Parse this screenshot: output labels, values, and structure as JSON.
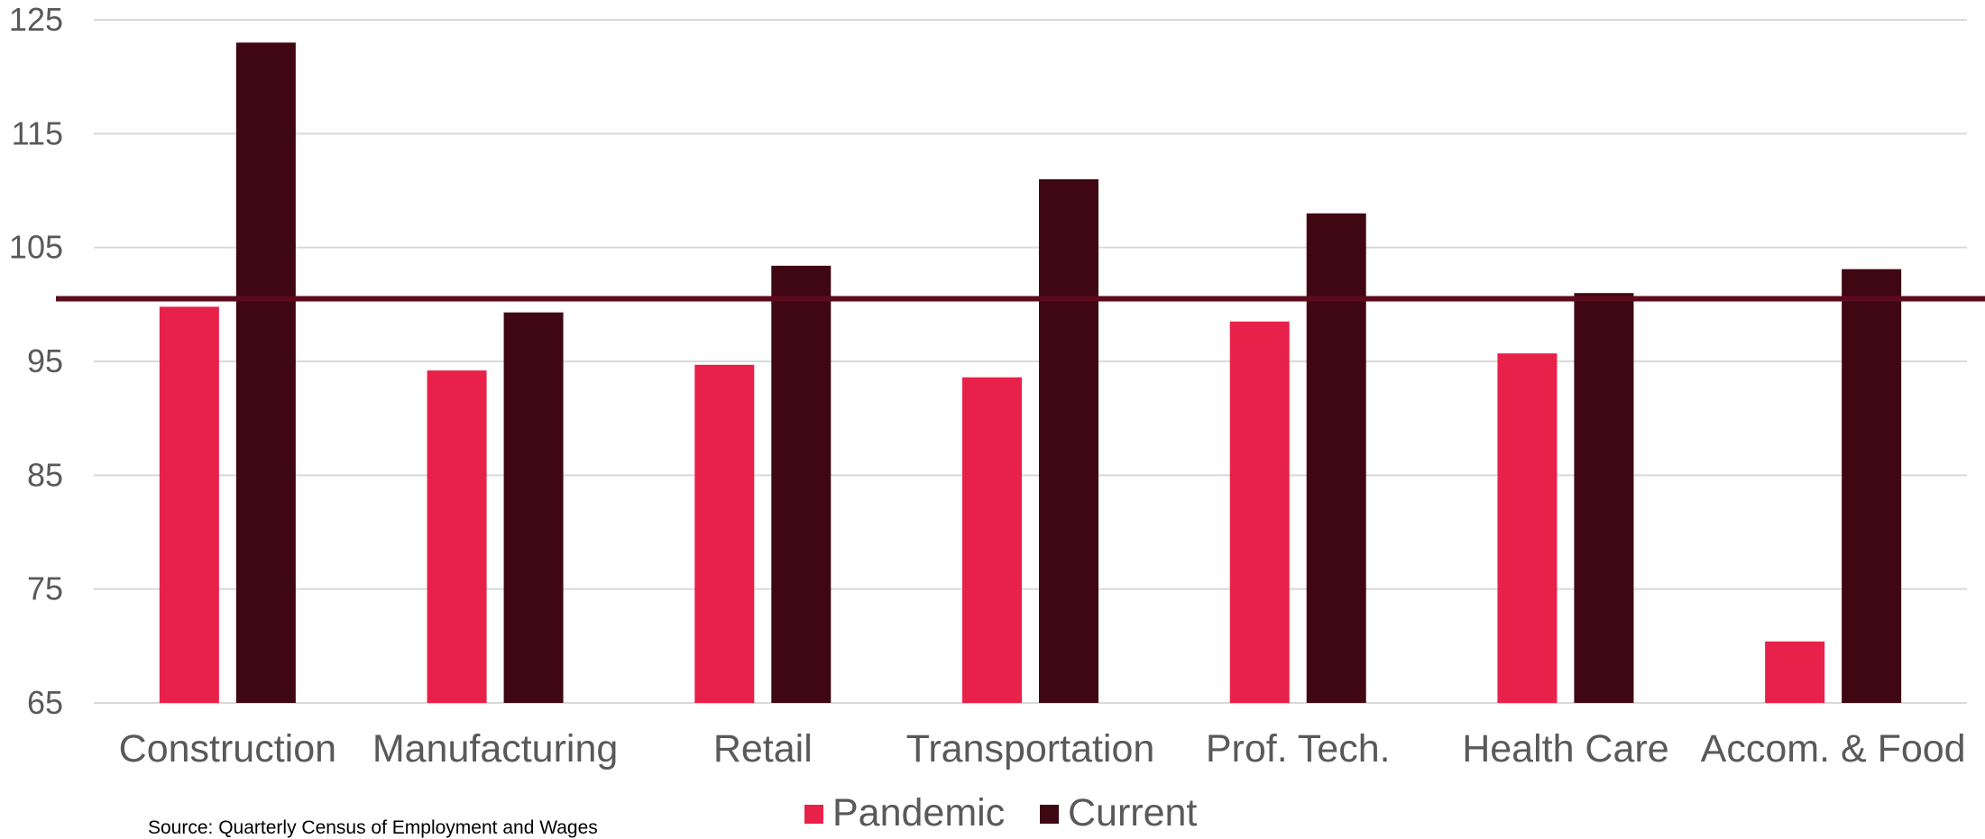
{
  "source_note": "Source:  Quarterly Census of Employment and Wages",
  "colors": {
    "pandemic": "#e8214a",
    "current": "#3f0712",
    "reference_line": "#5c0b1c",
    "grid": "#d9d9d9"
  },
  "chart_data": {
    "type": "bar",
    "title": "",
    "xlabel": "",
    "ylabel": "",
    "ylim": [
      65,
      125
    ],
    "yticks": [
      65,
      75,
      85,
      95,
      105,
      115,
      125
    ],
    "grid": true,
    "legend_position": "bottom",
    "reference_line": 100.5,
    "categories": [
      "Construction",
      "Manufacturing",
      "Retail",
      "Transportation",
      "Prof. Tech.",
      "Health Care",
      "Accom. & Food"
    ],
    "series": [
      {
        "name": "Pandemic",
        "values": [
          99.8,
          94.2,
          94.7,
          93.6,
          98.5,
          95.7,
          70.4
        ]
      },
      {
        "name": "Current",
        "values": [
          123.0,
          99.3,
          103.4,
          111.0,
          108.0,
          101.0,
          103.1
        ]
      }
    ]
  }
}
